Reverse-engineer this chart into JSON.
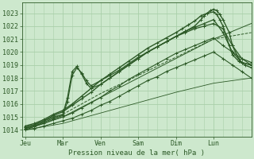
{
  "bg_color": "#cde8cd",
  "grid_color": "#aacfaa",
  "line_color": "#2d5a27",
  "xlabel_text": "Pression niveau de la mer( hPa )",
  "x_tick_labels": [
    "Jeu",
    "Mar",
    "Ven",
    "Sam",
    "Dim",
    "Lun"
  ],
  "x_tick_positions": [
    0,
    24,
    48,
    72,
    96,
    120
  ],
  "ylim": [
    1013.5,
    1023.8
  ],
  "xlim": [
    -2,
    144
  ],
  "yticks": [
    1014,
    1015,
    1016,
    1017,
    1018,
    1019,
    1020,
    1021,
    1022,
    1023
  ],
  "lines": [
    {
      "x": [
        0,
        6,
        12,
        18,
        24,
        30,
        36,
        42,
        48,
        54,
        60,
        66,
        72,
        78,
        84,
        90,
        96,
        102,
        108,
        114,
        120,
        126,
        132,
        138,
        144
      ],
      "y": [
        1014.0,
        1014.1,
        1014.3,
        1014.5,
        1014.7,
        1014.9,
        1015.2,
        1015.5,
        1015.9,
        1016.2,
        1016.6,
        1017.0,
        1017.4,
        1017.8,
        1018.1,
        1018.5,
        1018.8,
        1019.1,
        1019.4,
        1019.7,
        1020.0,
        1019.5,
        1019.0,
        1018.5,
        1018.0
      ],
      "style": "-",
      "marker": "+",
      "ms": 2.5,
      "lw": 0.8
    },
    {
      "x": [
        0,
        6,
        12,
        18,
        24,
        30,
        36,
        42,
        48,
        54,
        60,
        66,
        72,
        78,
        84,
        90,
        96,
        102,
        108,
        114,
        120,
        126,
        132,
        138,
        144
      ],
      "y": [
        1014.1,
        1014.3,
        1014.5,
        1014.8,
        1015.0,
        1015.3,
        1015.7,
        1016.1,
        1016.5,
        1017.0,
        1017.4,
        1017.9,
        1018.3,
        1018.7,
        1019.1,
        1019.5,
        1019.9,
        1020.2,
        1020.5,
        1020.8,
        1021.1,
        1020.5,
        1020.0,
        1019.5,
        1019.0
      ],
      "style": "-",
      "marker": "+",
      "ms": 2.5,
      "lw": 0.8
    },
    {
      "x": [
        0,
        6,
        12,
        18,
        24,
        27,
        30,
        33,
        36,
        39,
        42,
        48,
        54,
        60,
        66,
        72,
        78,
        84,
        90,
        96,
        102,
        108,
        114,
        120,
        126,
        132,
        138,
        144
      ],
      "y": [
        1014.1,
        1014.3,
        1014.6,
        1014.9,
        1015.1,
        1016.2,
        1018.2,
        1018.8,
        1018.4,
        1017.8,
        1017.4,
        1017.8,
        1018.2,
        1018.6,
        1019.1,
        1019.6,
        1020.0,
        1020.4,
        1020.8,
        1021.2,
        1021.5,
        1021.8,
        1022.0,
        1022.2,
        1021.8,
        1020.5,
        1019.5,
        1019.2
      ],
      "style": "-",
      "marker": "+",
      "ms": 2.5,
      "lw": 0.9
    },
    {
      "x": [
        0,
        6,
        12,
        18,
        24,
        27,
        30,
        33,
        36,
        39,
        42,
        48,
        54,
        60,
        66,
        72,
        78,
        84,
        90,
        96,
        102,
        108,
        114,
        120,
        126,
        132,
        138,
        144
      ],
      "y": [
        1014.2,
        1014.4,
        1014.7,
        1015.0,
        1015.2,
        1016.5,
        1018.5,
        1018.9,
        1018.3,
        1017.6,
        1017.2,
        1017.5,
        1018.0,
        1018.5,
        1019.0,
        1019.5,
        1020.0,
        1020.4,
        1020.8,
        1021.2,
        1021.6,
        1021.9,
        1022.2,
        1022.5,
        1021.5,
        1020.0,
        1019.2,
        1019.0
      ],
      "style": "-",
      "marker": "+",
      "ms": 2.5,
      "lw": 0.9
    },
    {
      "x": [
        0,
        6,
        12,
        18,
        24,
        30,
        36,
        42,
        48,
        54,
        60,
        66,
        72,
        78,
        84,
        90,
        96,
        102,
        108,
        112,
        114,
        118,
        120,
        122,
        124,
        126,
        130,
        132,
        136,
        138,
        144
      ],
      "y": [
        1014.2,
        1014.4,
        1014.7,
        1015.1,
        1015.4,
        1015.9,
        1016.4,
        1016.9,
        1017.5,
        1018.0,
        1018.5,
        1019.0,
        1019.5,
        1020.0,
        1020.4,
        1020.8,
        1021.2,
        1021.6,
        1022.0,
        1022.5,
        1022.8,
        1023.2,
        1023.3,
        1023.2,
        1022.9,
        1022.5,
        1021.5,
        1020.5,
        1019.5,
        1019.2,
        1019.0
      ],
      "style": "-",
      "marker": "+",
      "ms": 2.5,
      "lw": 1.0
    },
    {
      "x": [
        0,
        6,
        12,
        18,
        24,
        30,
        36,
        42,
        48,
        54,
        60,
        66,
        72,
        78,
        84,
        90,
        96,
        100,
        104,
        108,
        112,
        116,
        120,
        122,
        124,
        126,
        130,
        132,
        136,
        140,
        144
      ],
      "y": [
        1014.3,
        1014.5,
        1014.8,
        1015.2,
        1015.5,
        1016.0,
        1016.6,
        1017.2,
        1017.8,
        1018.3,
        1018.8,
        1019.3,
        1019.8,
        1020.3,
        1020.7,
        1021.1,
        1021.5,
        1021.8,
        1022.1,
        1022.4,
        1022.8,
        1023.0,
        1023.1,
        1022.9,
        1022.5,
        1022.0,
        1020.5,
        1019.8,
        1019.3,
        1019.0,
        1018.8
      ],
      "style": "-",
      "marker": "+",
      "ms": 2.5,
      "lw": 1.0
    },
    {
      "x": [
        0,
        24,
        48,
        72,
        96,
        120,
        144
      ],
      "y": [
        1014.0,
        1015.0,
        1016.5,
        1018.0,
        1019.5,
        1021.0,
        1022.2
      ],
      "style": "-",
      "marker": null,
      "ms": 0,
      "lw": 0.7
    },
    {
      "x": [
        0,
        24,
        48,
        72,
        96,
        120,
        144
      ],
      "y": [
        1014.0,
        1015.2,
        1016.8,
        1018.2,
        1019.6,
        1021.0,
        1021.5
      ],
      "style": "--",
      "marker": null,
      "ms": 0,
      "lw": 0.7
    },
    {
      "x": [
        0,
        24,
        48,
        72,
        96,
        120,
        144
      ],
      "y": [
        1014.0,
        1014.5,
        1015.3,
        1016.1,
        1016.9,
        1017.6,
        1018.0
      ],
      "style": "-",
      "marker": null,
      "ms": 0,
      "lw": 0.6
    }
  ]
}
